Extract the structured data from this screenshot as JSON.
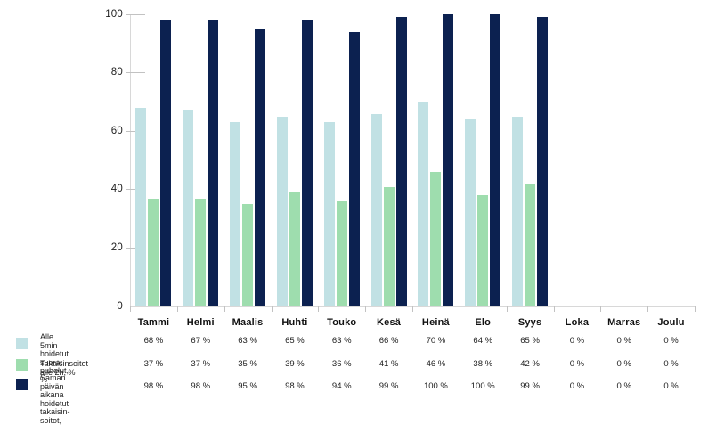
{
  "chart_data": {
    "type": "bar",
    "title": "",
    "xlabel": "",
    "ylabel": "",
    "categories": [
      "Tammi",
      "Helmi",
      "Maalis",
      "Huhti",
      "Touko",
      "Kesä",
      "Heinä",
      "Elo",
      "Syys",
      "Loka",
      "Marras",
      "Joulu"
    ],
    "series": [
      {
        "key": "suorat-puhelut",
        "name": "Alle 5min hoidetut suorat puhelut, %",
        "legend_lines": [
          "Alle 5min hoidetut",
          "suorat puhelut, %"
        ],
        "color": "#c1e1e4",
        "values": [
          68,
          67,
          63,
          65,
          63,
          66,
          70,
          64,
          65,
          0,
          0,
          0
        ]
      },
      {
        "key": "takaisinsoitot-2h",
        "name": "Takaisinsoitot alle 2h, %",
        "legend_lines": [
          "Takaisinsoitot alle 2h, %"
        ],
        "color": "#9eddae",
        "values": [
          37,
          37,
          35,
          39,
          36,
          41,
          46,
          38,
          42,
          0,
          0,
          0
        ]
      },
      {
        "key": "saman-paivan-takaisinsoitot",
        "name": "Saman päivän aikana hoidetut takaisinsoitot, %",
        "legend_lines": [
          "Saman päivän aikana",
          "hoidetut takaisin-",
          "soitot, %"
        ],
        "color": "#0c2150",
        "values": [
          98,
          98,
          95,
          98,
          94,
          99,
          100,
          100,
          99,
          0,
          0,
          0
        ]
      }
    ],
    "ylim": [
      0,
      100
    ],
    "yticks": [
      0,
      20,
      40,
      60,
      80,
      100
    ],
    "ytick_labels": [
      "0",
      "20",
      "40",
      "60",
      "80",
      "100"
    ],
    "value_suffix": " %",
    "grid": false,
    "legend_position": "bottom-left"
  },
  "colors": {
    "axis_line": "#d8d8d8",
    "tick": "#c2c2c2",
    "text": "#1a1a1a"
  }
}
